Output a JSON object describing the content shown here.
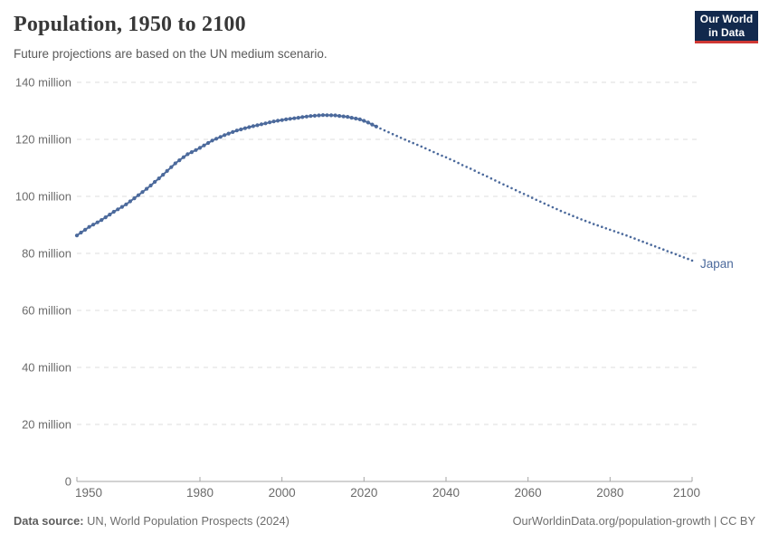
{
  "header": {
    "title": "Population, 1950 to 2100",
    "subtitle": "Future projections are based on the UN medium scenario.",
    "logo": {
      "line1": "Our World",
      "line2": "in Data",
      "bg_color": "#12294d",
      "accent_color": "#cf3834"
    }
  },
  "footer": {
    "source_label": "Data source:",
    "source_text": " UN, World Population Prospects (2024)",
    "link_text": "OurWorldinData.org/population-growth",
    "license_text": " | CC BY"
  },
  "chart_data": {
    "type": "line",
    "title": "Population, 1950 to 2100",
    "subtitle": "Future projections are based on the UN medium scenario.",
    "entity_label": "Japan",
    "unit": "million people",
    "xlim": [
      1950,
      2100
    ],
    "ylim_millions": [
      0,
      140
    ],
    "grid": "horizontal dashed",
    "legend_position": "end-of-line label",
    "line_color": "#4c6a9c",
    "grid_color": "#dcdcdc",
    "axis_color": "#a6a6a6",
    "tick_label_color": "#6b6b6b",
    "x_ticks": [
      1950,
      1980,
      2000,
      2020,
      2040,
      2060,
      2080,
      2100
    ],
    "y_ticks": [
      {
        "value": 0,
        "label": "0"
      },
      {
        "value": 20,
        "label": "20 million"
      },
      {
        "value": 40,
        "label": "40 million"
      },
      {
        "value": 60,
        "label": "60 million"
      },
      {
        "value": 80,
        "label": "80 million"
      },
      {
        "value": 100,
        "label": "100 million"
      },
      {
        "value": 120,
        "label": "120 million"
      },
      {
        "value": 140,
        "label": "140 million"
      }
    ],
    "series": [
      {
        "name": "Japan — historical estimates (solid line, yearly markers)",
        "style": "solid-with-markers",
        "marker_interval_years": 1,
        "points_year_millions": [
          [
            1950,
            86.3
          ],
          [
            1953,
            89.3
          ],
          [
            1956,
            91.7
          ],
          [
            1959,
            94.6
          ],
          [
            1962,
            97.2
          ],
          [
            1965,
            100.4
          ],
          [
            1968,
            103.8
          ],
          [
            1971,
            107.6
          ],
          [
            1974,
            111.6
          ],
          [
            1977,
            114.8
          ],
          [
            1980,
            117.0
          ],
          [
            1983,
            119.6
          ],
          [
            1986,
            121.5
          ],
          [
            1989,
            123.1
          ],
          [
            1992,
            124.3
          ],
          [
            1995,
            125.3
          ],
          [
            1998,
            126.3
          ],
          [
            2001,
            127.0
          ],
          [
            2004,
            127.6
          ],
          [
            2007,
            128.2
          ],
          [
            2010,
            128.5
          ],
          [
            2013,
            128.4
          ],
          [
            2016,
            127.9
          ],
          [
            2019,
            127.0
          ],
          [
            2020,
            126.5
          ],
          [
            2021,
            125.9
          ],
          [
            2022,
            125.2
          ],
          [
            2023,
            124.5
          ]
        ]
      },
      {
        "name": "Japan — UN medium scenario projection (dotted, yearly dots)",
        "style": "dotted",
        "marker_interval_years": 1,
        "points_year_millions": [
          [
            2024,
            123.8
          ],
          [
            2026,
            122.5
          ],
          [
            2028,
            121.2
          ],
          [
            2030,
            119.9
          ],
          [
            2032,
            118.7
          ],
          [
            2034,
            117.5
          ],
          [
            2036,
            116.2
          ],
          [
            2038,
            114.9
          ],
          [
            2040,
            113.7
          ],
          [
            2042,
            112.4
          ],
          [
            2044,
            111.0
          ],
          [
            2046,
            109.7
          ],
          [
            2048,
            108.3
          ],
          [
            2050,
            107.0
          ],
          [
            2052,
            105.6
          ],
          [
            2054,
            104.2
          ],
          [
            2056,
            102.9
          ],
          [
            2058,
            101.5
          ],
          [
            2060,
            100.2
          ],
          [
            2062,
            98.8
          ],
          [
            2064,
            97.5
          ],
          [
            2066,
            96.2
          ],
          [
            2068,
            94.9
          ],
          [
            2070,
            93.7
          ],
          [
            2072,
            92.5
          ],
          [
            2074,
            91.4
          ],
          [
            2076,
            90.3
          ],
          [
            2078,
            89.3
          ],
          [
            2080,
            88.3
          ],
          [
            2082,
            87.3
          ],
          [
            2084,
            86.3
          ],
          [
            2086,
            85.2
          ],
          [
            2088,
            84.1
          ],
          [
            2090,
            83.0
          ],
          [
            2092,
            81.9
          ],
          [
            2094,
            80.8
          ],
          [
            2096,
            79.7
          ],
          [
            2098,
            78.6
          ],
          [
            2100,
            77.5
          ]
        ]
      }
    ]
  }
}
